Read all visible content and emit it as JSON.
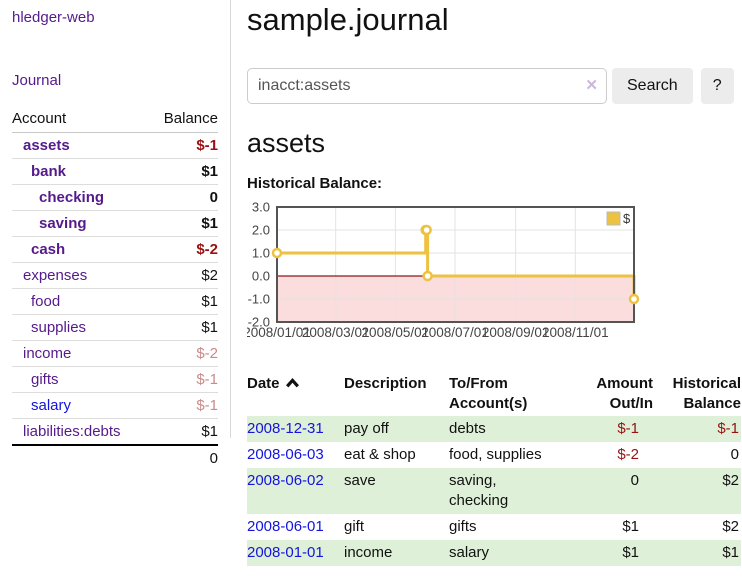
{
  "app": {
    "title": "hledger-web",
    "nav_journal": "Journal"
  },
  "sidebar": {
    "header": {
      "account": "Account",
      "balance": "Balance"
    },
    "accounts": [
      {
        "name": "assets",
        "indent": 1,
        "bold": true,
        "balance": "$-1",
        "negative": "strong"
      },
      {
        "name": "bank",
        "indent": 2,
        "bold": true,
        "balance": "$1"
      },
      {
        "name": "checking",
        "indent": 3,
        "bold": true,
        "balance": "0"
      },
      {
        "name": "saving",
        "indent": 3,
        "bold": true,
        "balance": "$1"
      },
      {
        "name": "cash",
        "indent": 2,
        "bold": true,
        "balance": "$-2",
        "negative": "strong"
      },
      {
        "name": "expenses",
        "indent": 1,
        "bold": false,
        "balance": "$2"
      },
      {
        "name": "food",
        "indent": 2,
        "bold": false,
        "balance": "$1"
      },
      {
        "name": "supplies",
        "indent": 2,
        "bold": false,
        "balance": "$1"
      },
      {
        "name": "income",
        "indent": 1,
        "bold": false,
        "balance": "$-2",
        "negative": "soft"
      },
      {
        "name": "gifts",
        "indent": 2,
        "bold": false,
        "balance": "$-1",
        "negative": "soft"
      },
      {
        "name": "salary",
        "indent": 2,
        "bold": false,
        "balance": "$-1",
        "negative": "soft",
        "link_state": "unvisited"
      },
      {
        "name": "liabilities:debts",
        "indent": 1,
        "bold": false,
        "balance": "$1"
      }
    ],
    "total": "0"
  },
  "main": {
    "title": "sample.journal",
    "search": {
      "value": "inacct:assets",
      "clear_icon": "✕",
      "button_label": "Search",
      "help_label": "?"
    },
    "account_heading": "assets",
    "chart_label": "Historical Balance:"
  },
  "chart_data": {
    "type": "line",
    "style": "step",
    "title": "Historical Balance:",
    "series": [
      {
        "name": "$",
        "points": [
          [
            "2008-01-01",
            1
          ],
          [
            "2008-06-01",
            2
          ],
          [
            "2008-06-02",
            2
          ],
          [
            "2008-06-03",
            0
          ],
          [
            "2008-12-31",
            -1
          ]
        ]
      }
    ],
    "xlim": [
      "2008-01-01",
      "2008-12-31"
    ],
    "ylim": [
      -2,
      3
    ],
    "xticks": [
      {
        "pos": "2008-01-01",
        "label": "2008/01/01"
      },
      {
        "pos": "2008-03-01",
        "label": "2008/03/01"
      },
      {
        "pos": "2008-05-01",
        "label": "2008/05/01"
      },
      {
        "pos": "2008-07-01",
        "label": "2008/07/01"
      },
      {
        "pos": "2008-09-01",
        "label": "2008/09/01"
      },
      {
        "pos": "2008-11-01",
        "label": "2008/11/01"
      }
    ],
    "yticks": [
      {
        "value": 3,
        "label": "3.0"
      },
      {
        "value": 2,
        "label": "2.0"
      },
      {
        "value": 1,
        "label": "1.0"
      },
      {
        "value": 0,
        "label": "0.0"
      },
      {
        "value": -1,
        "label": "-1.0"
      },
      {
        "value": -2,
        "label": "-2.0"
      }
    ],
    "legend": {
      "position": "top-right",
      "entries": [
        "$"
      ]
    },
    "grid": true,
    "negative_region_shaded": true
  },
  "register": {
    "headers": {
      "date": "Date",
      "description": "Description",
      "accounts": "To/From Account(s)",
      "amount": "Amount Out/In",
      "balance": "Historical Balance"
    },
    "sort": {
      "column": "date",
      "direction": "ascending"
    },
    "rows": [
      {
        "date": "2008-12-31",
        "description": "pay off",
        "accounts": "debts",
        "amount": "$-1",
        "balance": "$-1"
      },
      {
        "date": "2008-06-03",
        "description": "eat & shop",
        "accounts": "food, supplies",
        "amount": "$-2",
        "balance": "0"
      },
      {
        "date": "2008-06-02",
        "description": "save",
        "accounts": "saving, checking",
        "amount": "0",
        "balance": "$2"
      },
      {
        "date": "2008-06-01",
        "description": "gift",
        "accounts": "gifts",
        "amount": "$1",
        "balance": "$2"
      },
      {
        "date": "2008-01-01",
        "description": "income",
        "accounts": "salary",
        "amount": "$1",
        "balance": "$1"
      }
    ]
  },
  "colors": {
    "link_purple": "#551a8b",
    "link_blue": "#1414dd",
    "negative_strong": "#991111",
    "negative_soft": "#c98a8a",
    "row_green": "#dff0d8",
    "chart_line_gold": "#edc240",
    "chart_negative_bg": "#fbdddd",
    "chart_zero_line": "#8b1a1a",
    "chart_border": "#545454",
    "grid_line": "#e3e3e3",
    "button_bg": "#ececec",
    "divider": "#d8d8d8"
  }
}
